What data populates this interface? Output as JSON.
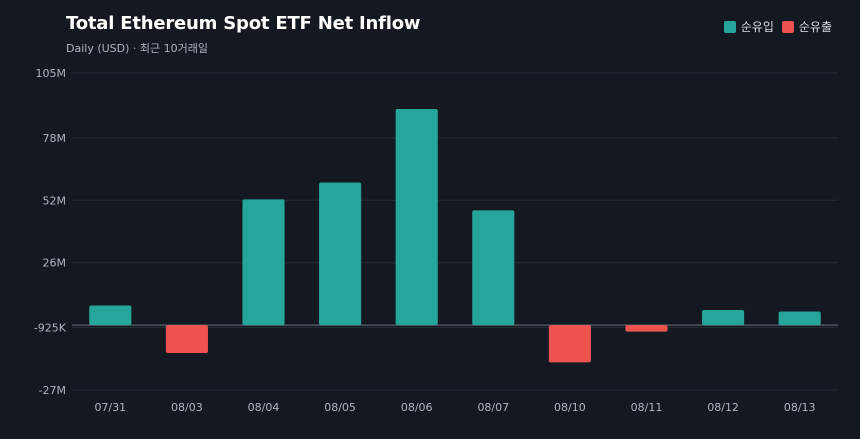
{
  "title": "Total Ethereum Spot ETF Net Inflow",
  "subtitle": "Daily (USD) · 최근 10거래일",
  "legend": [
    {
      "label": "순유입",
      "color": "#26a69a"
    },
    {
      "label": "순유출",
      "color": "#ef5350"
    }
  ],
  "colors": {
    "inflow": "#26a69a",
    "outflow": "#ef5350",
    "grid": "#262c36",
    "zero": "#5a606b"
  },
  "chart_data": {
    "type": "bar",
    "title": "Total Ethereum Spot ETF Net Inflow",
    "subtitle": "Daily (USD) · 최근 10거래일",
    "categories": [
      "07/31",
      "08/03",
      "08/04",
      "08/05",
      "08/06",
      "08/07",
      "08/10",
      "08/11",
      "08/12",
      "08/13"
    ],
    "values": [
      8.2,
      -11.6,
      52.4,
      59.4,
      90.0,
      47.8,
      -15.5,
      -2.7,
      6.3,
      5.7
    ],
    "unit": "M USD",
    "yticks": [
      105,
      78,
      52,
      26,
      -0.925,
      -27
    ],
    "ytick_labels": [
      "105M",
      "78M",
      "52M",
      "26M",
      "-925K",
      "-27M"
    ],
    "ylim": [
      -27,
      105
    ],
    "grid": true,
    "legend_position": "top-right"
  }
}
